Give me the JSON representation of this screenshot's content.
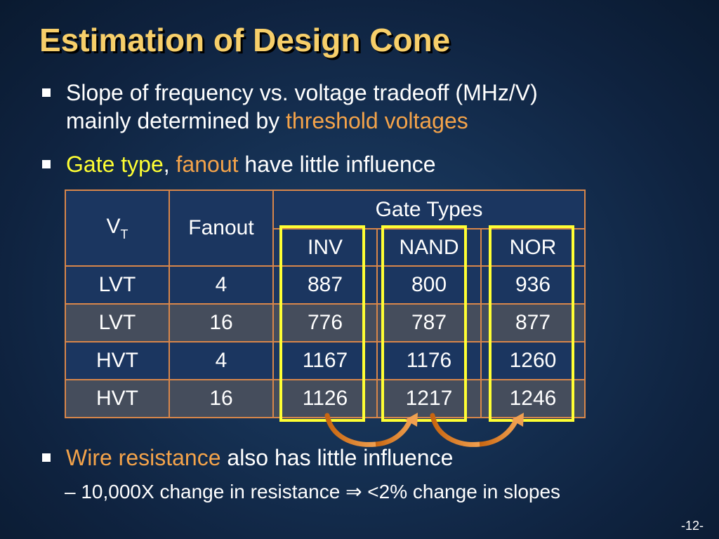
{
  "slide": {
    "title": "Estimation of Design Cone",
    "page_number": "-12-"
  },
  "bullets": {
    "b1": {
      "line1": "Slope of frequency vs. voltage tradeoff (MHz/V)",
      "line2_text": "mainly determined by ",
      "line2_highlight": "threshold voltages"
    },
    "b2": {
      "gate_type": "Gate type",
      "comma": ",",
      "fanout": "fanout",
      "rest": " have little influence"
    },
    "b3": {
      "highlight": "Wire resistance",
      "rest": " also has little influence"
    },
    "sub": {
      "text": "– 10,000X change in resistance ",
      "arrow": "⇒",
      "rest": " <2% change in slopes"
    }
  },
  "table": {
    "header_vt": "V",
    "header_vt_sub": "T",
    "header_fanout": "Fanout",
    "header_gate_types": "Gate Types",
    "gate_cols": [
      "INV",
      "NAND",
      "NOR"
    ],
    "rows": [
      {
        "vt": "LVT",
        "fanout": "4",
        "inv": "887",
        "nand": "800",
        "nor": "936"
      },
      {
        "vt": "LVT",
        "fanout": "16",
        "inv": "776",
        "nand": "787",
        "nor": "877"
      },
      {
        "vt": "HVT",
        "fanout": "4",
        "inv": "1167",
        "nand": "1176",
        "nor": "1260"
      },
      {
        "vt": "HVT",
        "fanout": "16",
        "inv": "1126",
        "nand": "1217",
        "nor": "1246"
      }
    ]
  },
  "colors": {
    "title": "#f7cf6a",
    "orange_highlight": "#f4a34a",
    "yellow_highlight": "#ffff33",
    "table_border": "#d8864a",
    "highlight_box": "#ffff33",
    "arrow": "#e07a1f"
  },
  "icons": {
    "bullet": "square-bullet-icon",
    "implies": "double-right-arrow-icon",
    "curved_arrow": "curved-arrow-icon"
  }
}
